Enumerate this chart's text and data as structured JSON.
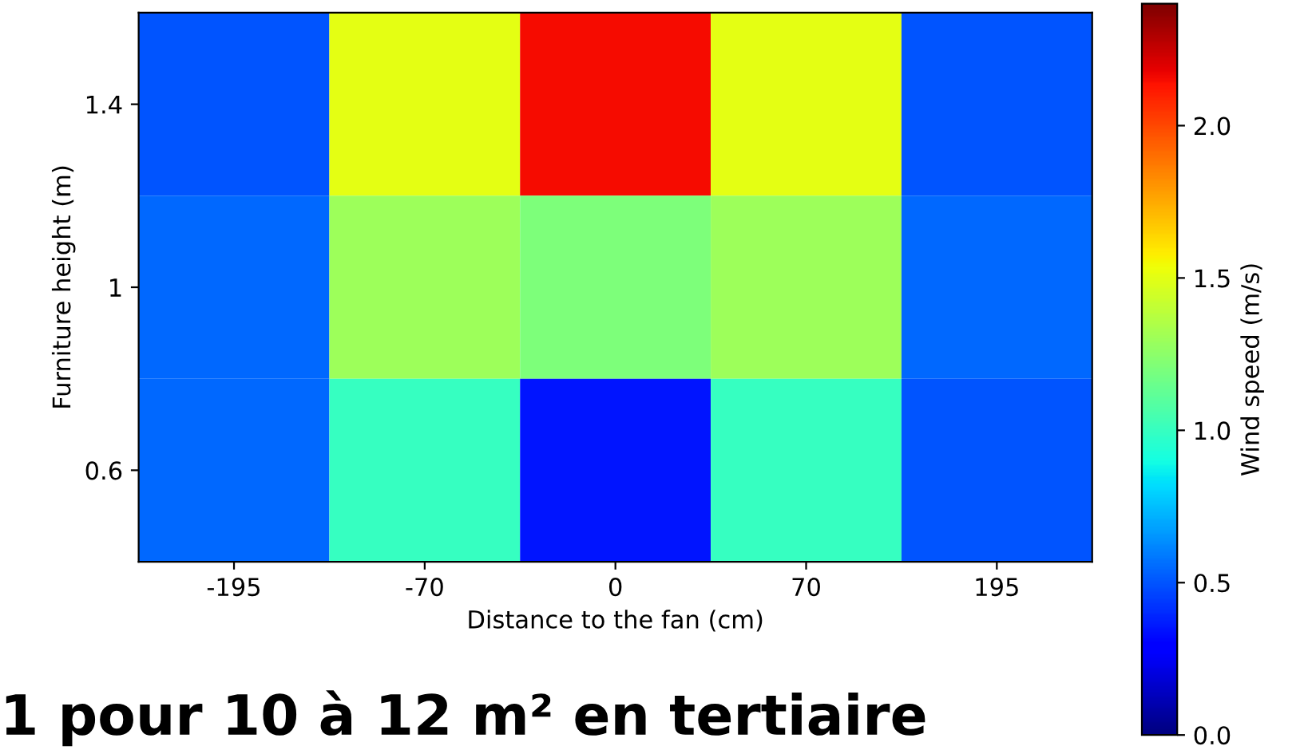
{
  "chart_data": {
    "type": "heatmap",
    "xlabel": "Distance to the fan (cm)",
    "ylabel": "Furniture height (m)",
    "clabel": "Wind speed (m/s)",
    "categories": [
      "-195",
      "-70",
      "0",
      "70",
      "195"
    ],
    "y_categories": [
      "1.4",
      "1",
      "0.6"
    ],
    "cells": [
      [
        0.5,
        1.5,
        2.15,
        1.5,
        0.5
      ],
      [
        0.55,
        1.3,
        1.2,
        1.3,
        0.55
      ],
      [
        0.55,
        1.0,
        0.35,
        1.0,
        0.5
      ]
    ],
    "clim": [
      0,
      2.4
    ],
    "cticks": [
      {
        "value": 0,
        "label": "0.0"
      },
      {
        "value": 0.5,
        "label": "0.5"
      },
      {
        "value": 1,
        "label": "1.0"
      },
      {
        "value": 1.5,
        "label": "1.5"
      },
      {
        "value": 2,
        "label": "2.0"
      }
    ],
    "annotations": [
      "1 pour 10 à 12 m² en tertiaire"
    ]
  }
}
